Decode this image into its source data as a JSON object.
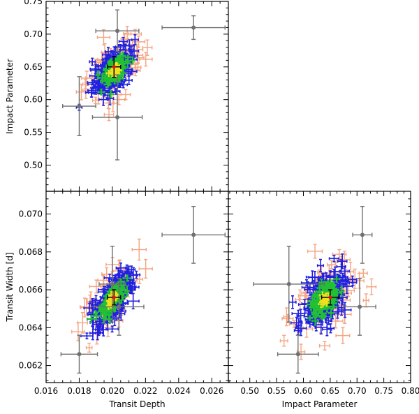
{
  "chart_data": [
    {
      "type": "scatter",
      "panel": "top-left",
      "xlabel": "",
      "ylabel": "Impact Parameter",
      "xlim": [
        0.016,
        0.027
      ],
      "ylim": [
        0.46,
        0.75
      ],
      "xticks": [],
      "yticks": [
        "0.50",
        "0.55",
        "0.60",
        "0.65",
        "0.70",
        "0.75"
      ],
      "cloud": {
        "center_x": 0.0201,
        "center_y": 0.645,
        "sigma_x": 0.00062,
        "sigma_y": 0.018,
        "correlation": 0.55
      },
      "grey_points": [
        {
          "x": 0.018,
          "y": 0.59,
          "xerr": 0.001,
          "yerr": 0.045
        },
        {
          "x": 0.0203,
          "y": 0.705,
          "xerr": 0.0013,
          "yerr": 0.032
        },
        {
          "x": 0.0203,
          "y": 0.573,
          "xerr": 0.0015,
          "yerr": 0.065
        },
        {
          "x": 0.0249,
          "y": 0.71,
          "xerr": 0.0019,
          "yerr": 0.018
        }
      ],
      "best_fit": {
        "x": 0.0201,
        "y": 0.65,
        "xerr": 0.0004,
        "yerr": 0.016
      }
    },
    {
      "type": "scatter",
      "panel": "bottom-left",
      "xlabel": "Transit Depth",
      "ylabel": "Transit Width [d]",
      "xlim": [
        0.016,
        0.027
      ],
      "ylim": [
        0.0611,
        0.0712
      ],
      "xticks": [
        "0.016",
        "0.018",
        "0.020",
        "0.022",
        "0.024",
        "0.026"
      ],
      "yticks": [
        "0.062",
        "0.064",
        "0.066",
        "0.068",
        "0.070"
      ],
      "cloud": {
        "center_x": 0.02,
        "center_y": 0.0655,
        "sigma_x": 0.00062,
        "sigma_y": 0.00075,
        "correlation": 0.7
      },
      "grey_points": [
        {
          "x": 0.018,
          "y": 0.0626,
          "xerr": 0.0011,
          "yerr": 0.001
        },
        {
          "x": 0.02,
          "y": 0.0663,
          "xerr": 0.0008,
          "yerr": 0.002
        },
        {
          "x": 0.0204,
          "y": 0.0651,
          "xerr": 0.0015,
          "yerr": 0.0015
        },
        {
          "x": 0.0249,
          "y": 0.0689,
          "xerr": 0.0019,
          "yerr": 0.0015
        }
      ],
      "best_fit": {
        "x": 0.0201,
        "y": 0.0656,
        "xerr": 0.0004,
        "yerr": 0.0004
      }
    },
    {
      "type": "scatter",
      "panel": "bottom-right",
      "xlabel": "Impact Parameter",
      "ylabel": "",
      "xlim": [
        0.46,
        0.8
      ],
      "ylim": [
        0.0611,
        0.0712
      ],
      "xticks": [
        "0.50",
        "0.55",
        "0.60",
        "0.65",
        "0.70",
        "0.75",
        "0.80"
      ],
      "yticks": [],
      "cloud": {
        "center_x": 0.64,
        "center_y": 0.0655,
        "sigma_x": 0.02,
        "sigma_y": 0.00072,
        "correlation": 0.45
      },
      "grey_points": [
        {
          "x": 0.59,
          "y": 0.0626,
          "xerr": 0.038,
          "yerr": 0.001
        },
        {
          "x": 0.573,
          "y": 0.0663,
          "xerr": 0.066,
          "yerr": 0.002
        },
        {
          "x": 0.705,
          "y": 0.0651,
          "xerr": 0.03,
          "yerr": 0.0015
        },
        {
          "x": 0.71,
          "y": 0.0689,
          "xerr": 0.018,
          "yerr": 0.0015
        }
      ],
      "best_fit": {
        "x": 0.65,
        "y": 0.0656,
        "xerr": 0.016,
        "yerr": 0.0004
      }
    }
  ],
  "colors": {
    "outer_cloud": "#f4a582",
    "mid_cloud": "#2020e0",
    "inner_cloud": "#22c033",
    "core_cloud": "#f0e020",
    "best_fit": "#e01818",
    "grey_points": "#707070",
    "axes": "#000000"
  }
}
